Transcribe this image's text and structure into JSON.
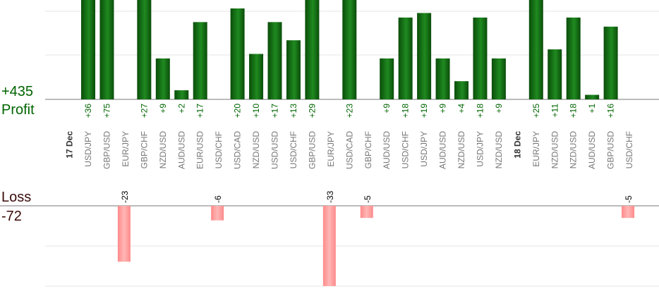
{
  "summary": {
    "profit_total": "+435",
    "profit_label": "Profit",
    "loss_label": "Loss",
    "loss_total": "-72"
  },
  "colors": {
    "profit_dark": "#0a4d0a",
    "profit_light": "#1f8a1f",
    "profit_text": "#006400",
    "loss_fill": "#ffb6b6",
    "loss_edge": "#ff8a8a",
    "loss_text": "#000000",
    "grid": "#e6e6e6",
    "axis": "#777777",
    "category_text": "#777777",
    "date_text": "#333333"
  },
  "chart_data": {
    "type": "bar",
    "groups": [
      {
        "date": "17 Dec",
        "categories": [
          "USD/JPY",
          "GBP/USD",
          "EUR/JPY",
          "GBP/CHF",
          "NZD/USD",
          "AUD/USD",
          "EUR/USD",
          "USD/CHF",
          "USD/CAD",
          "NZD/USD",
          "USD/USD",
          "USD/CHF",
          "GBP/USD",
          "EUR/JPY",
          "USD/CAD",
          "GBP/CHF",
          "AUD/USD",
          "USD/CHF",
          "USD/JPY",
          "AUD/USD",
          "NZD/USD",
          "USD/JPY",
          "NZD/USD"
        ]
      },
      {
        "date": "18 Dec",
        "categories": [
          "EUR/JPY",
          "NZD/USD",
          "NZD/USD",
          "AUD/USD",
          "GBP/USD",
          "USD/CHF"
        ]
      }
    ],
    "series": [
      {
        "name": "Profit",
        "values": [
          36,
          75,
          null,
          27,
          9,
          2,
          17,
          null,
          20,
          10,
          17,
          13,
          29,
          null,
          23,
          null,
          9,
          18,
          19,
          9,
          4,
          18,
          9,
          25,
          11,
          18,
          1,
          16,
          null
        ]
      },
      {
        "name": "Loss",
        "values": [
          null,
          null,
          -23,
          null,
          null,
          null,
          null,
          -6,
          null,
          null,
          null,
          null,
          null,
          -33,
          null,
          -5,
          null,
          null,
          null,
          null,
          null,
          null,
          null,
          null,
          null,
          null,
          null,
          null,
          -5
        ]
      }
    ],
    "profit_labels": [
      "+36",
      "+75",
      "",
      "+27",
      "+9",
      "+2",
      "+17",
      "",
      "+20",
      "+10",
      "+17",
      "+13",
      "+29",
      "",
      "+23",
      "",
      "+9",
      "+18",
      "+19",
      "+9",
      "+4",
      "+18",
      "+9",
      "+25",
      "+11",
      "+18",
      "+1",
      "+16",
      ""
    ],
    "loss_labels": [
      "",
      "",
      "-23",
      "",
      "",
      "",
      "",
      "-6",
      "",
      "",
      "",
      "",
      "",
      "-33",
      "",
      "-5",
      "",
      "",
      "",
      "",
      "",
      "",
      "",
      "",
      "",
      "",
      "",
      "",
      "-5"
    ]
  }
}
